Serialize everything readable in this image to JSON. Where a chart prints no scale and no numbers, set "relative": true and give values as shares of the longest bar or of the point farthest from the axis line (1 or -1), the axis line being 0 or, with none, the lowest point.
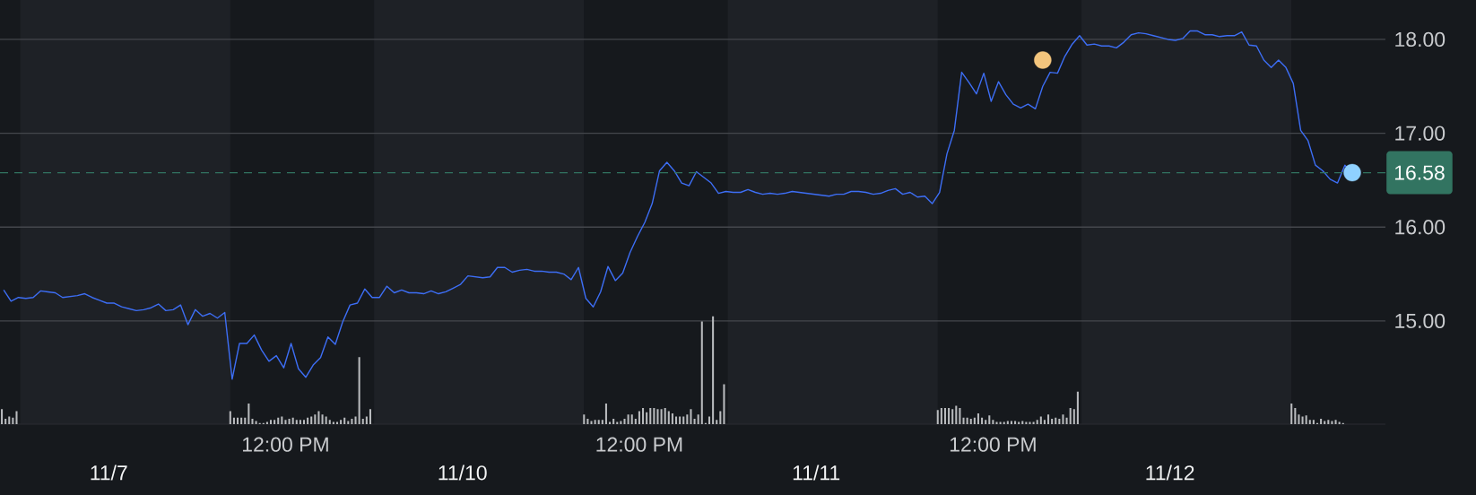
{
  "chart_data": [
    {
      "type": "line",
      "categories": [
        null,
        null,
        null,
        null,
        null,
        null,
        null,
        null,
        null,
        null,
        null,
        null,
        null,
        null,
        null,
        null,
        null,
        null,
        null,
        null,
        null,
        null,
        null,
        null,
        null,
        null,
        null,
        null,
        null,
        null,
        null,
        null,
        null,
        null,
        null,
        null,
        null,
        null,
        null,
        null,
        null,
        null,
        null,
        null,
        null,
        null,
        null,
        null,
        null,
        null,
        null,
        null,
        null,
        null,
        null,
        null,
        null,
        null,
        null,
        null,
        null,
        null,
        null,
        null,
        null,
        null,
        null,
        null,
        null,
        null,
        null,
        null,
        null,
        null,
        null,
        null,
        null,
        null,
        null,
        null,
        null,
        null,
        null,
        null,
        null,
        null,
        null,
        null,
        null,
        null,
        null,
        null,
        null,
        null,
        null,
        null,
        null,
        null,
        null,
        null,
        null,
        null,
        null,
        null,
        null,
        null,
        null,
        null,
        null,
        null,
        null,
        null,
        null,
        null,
        null,
        null,
        null,
        null,
        null,
        null,
        null,
        null,
        null,
        null,
        null,
        null,
        null,
        null,
        null,
        null,
        null,
        null,
        null,
        null,
        null,
        null,
        null,
        null,
        null,
        null,
        null,
        null,
        null,
        null,
        null,
        null,
        null,
        null,
        null,
        null,
        null,
        null,
        null,
        null,
        null,
        null,
        null,
        null,
        null,
        null,
        null,
        null,
        null,
        null,
        null,
        null,
        null,
        null,
        null,
        null,
        null,
        null,
        null,
        null,
        null,
        null,
        null,
        null,
        null,
        null,
        null,
        null,
        null,
        null,
        null,
        null,
        null,
        null
      ],
      "series": [
        {
          "color": "#3d6ef5",
          "values": [
            15.33,
            15.21,
            15.25,
            15.24,
            15.25,
            15.32,
            15.31,
            15.3,
            15.25,
            15.26,
            15.27,
            15.29,
            15.25,
            15.22,
            15.19,
            15.19,
            15.15,
            15.13,
            15.11,
            15.12,
            15.14,
            15.18,
            15.11,
            15.12,
            15.17,
            14.96,
            15.12,
            15.05,
            15.08,
            15.03,
            15.09,
            14.38,
            14.76,
            14.76,
            14.85,
            14.69,
            14.57,
            14.63,
            14.5,
            14.76,
            14.49,
            14.4,
            14.53,
            14.61,
            14.83,
            14.75,
            14.99,
            15.17,
            15.19,
            15.34,
            15.25,
            15.25,
            15.37,
            15.3,
            15.33,
            15.3,
            15.3,
            15.29,
            15.32,
            15.29,
            15.31,
            15.35,
            15.39,
            15.48,
            15.47,
            15.46,
            15.47,
            15.57,
            15.57,
            15.52,
            15.54,
            15.55,
            15.53,
            15.53,
            15.52,
            15.52,
            15.5,
            15.44,
            15.57,
            15.24,
            15.15,
            15.31,
            15.58,
            15.43,
            15.51,
            15.73,
            15.9,
            16.05,
            16.25,
            16.6,
            16.69,
            16.6,
            16.47,
            16.44,
            16.59,
            16.53,
            16.47,
            16.36,
            16.38,
            16.37,
            16.37,
            16.4,
            16.37,
            16.35,
            16.36,
            16.35,
            16.36,
            16.38,
            16.37,
            16.36,
            16.35,
            16.34,
            16.33,
            16.35,
            16.35,
            16.38,
            16.38,
            16.37,
            16.35,
            16.36,
            16.39,
            16.41,
            16.35,
            16.37,
            16.32,
            16.33,
            16.25,
            16.37,
            16.78,
            17.03,
            17.65,
            17.54,
            17.42,
            17.64,
            17.34,
            17.55,
            17.41,
            17.31,
            17.27,
            17.31,
            17.26,
            17.5,
            17.65,
            17.64,
            17.82,
            17.95,
            18.04,
            17.94,
            17.95,
            17.93,
            17.93,
            17.91,
            17.97,
            18.05,
            18.07,
            18.06,
            18.04,
            18.02,
            18.0,
            17.99,
            18.01,
            18.09,
            18.09,
            18.05,
            18.05,
            18.03,
            18.04,
            18.04,
            18.08,
            17.94,
            17.93,
            17.78,
            17.7,
            17.78,
            17.7,
            17.53,
            17.03,
            16.92,
            16.66,
            16.6,
            16.51,
            16.47,
            16.66,
            16.58,
            null,
            null,
            null,
            null
          ]
        },
        {
          "type": "scatter",
          "color": "#f3c57d",
          "values": [
            null,
            null,
            null,
            null,
            null,
            null,
            null,
            null,
            null,
            null,
            null,
            null,
            null,
            null,
            null,
            null,
            null,
            null,
            null,
            null,
            null,
            null,
            null,
            null,
            null,
            null,
            null,
            null,
            null,
            null,
            null,
            null,
            null,
            null,
            null,
            null,
            null,
            null,
            null,
            null,
            null,
            null,
            null,
            null,
            null,
            null,
            null,
            null,
            null,
            null,
            null,
            null,
            null,
            null,
            null,
            null,
            null,
            null,
            null,
            null,
            null,
            null,
            null,
            null,
            null,
            null,
            null,
            null,
            null,
            null,
            null,
            null,
            null,
            null,
            null,
            null,
            null,
            null,
            null,
            null,
            null,
            null,
            null,
            null,
            null,
            null,
            null,
            null,
            null,
            null,
            null,
            null,
            null,
            null,
            null,
            null,
            null,
            null,
            null,
            null,
            null,
            null,
            null,
            null,
            null,
            null,
            null,
            null,
            null,
            null,
            null,
            null,
            null,
            null,
            null,
            null,
            null,
            null,
            null,
            null,
            null,
            null,
            null,
            null,
            null,
            null,
            null,
            null,
            null,
            null,
            null,
            null,
            null,
            null,
            null,
            null,
            null,
            null,
            null,
            null,
            null,
            17.78,
            null,
            null,
            null,
            null,
            null,
            null,
            null,
            null,
            null,
            null,
            null,
            null,
            null,
            null,
            null,
            null,
            null,
            null,
            null,
            null,
            null,
            null,
            null,
            null,
            null,
            null,
            null,
            null,
            null,
            null,
            null,
            null,
            null,
            null,
            null,
            null,
            null,
            null,
            null,
            null,
            null,
            null,
            null,
            null,
            null,
            null
          ]
        },
        {
          "type": "scatter",
          "color": "#8fd1ff",
          "values": [
            null,
            null,
            null,
            null,
            null,
            null,
            null,
            null,
            null,
            null,
            null,
            null,
            null,
            null,
            null,
            null,
            null,
            null,
            null,
            null,
            null,
            null,
            null,
            null,
            null,
            null,
            null,
            null,
            null,
            null,
            null,
            null,
            null,
            null,
            null,
            null,
            null,
            null,
            null,
            null,
            null,
            null,
            null,
            null,
            null,
            null,
            null,
            null,
            null,
            null,
            null,
            null,
            null,
            null,
            null,
            null,
            null,
            null,
            null,
            null,
            null,
            null,
            null,
            null,
            null,
            null,
            null,
            null,
            null,
            null,
            null,
            null,
            null,
            null,
            null,
            null,
            null,
            null,
            null,
            null,
            null,
            null,
            null,
            null,
            null,
            null,
            null,
            null,
            null,
            null,
            null,
            null,
            null,
            null,
            null,
            null,
            null,
            null,
            null,
            null,
            null,
            null,
            null,
            null,
            null,
            null,
            null,
            null,
            null,
            null,
            null,
            null,
            null,
            null,
            null,
            null,
            null,
            null,
            null,
            null,
            null,
            null,
            null,
            null,
            null,
            null,
            null,
            null,
            null,
            null,
            null,
            null,
            null,
            null,
            null,
            null,
            null,
            null,
            null,
            null,
            null,
            null,
            null,
            null,
            null,
            null,
            null,
            null,
            null,
            null,
            null,
            null,
            null,
            null,
            null,
            null,
            null,
            null,
            null,
            null,
            null,
            null,
            null,
            null,
            null,
            null,
            null,
            null,
            null,
            null,
            null,
            null,
            null,
            null,
            null,
            null,
            null,
            null,
            null,
            null,
            null,
            null,
            null,
            16.58,
            null,
            null,
            null,
            null
          ]
        }
      ],
      "ylim": [
        13.9,
        18.42
      ],
      "yticks": [
        {
          "value": 15,
          "label": "15.00"
        },
        {
          "value": 16,
          "label": "16.00"
        },
        {
          "value": 17,
          "label": "17.00"
        },
        {
          "value": 18,
          "label": "18.00"
        }
      ],
      "grid": "y",
      "ref_lines": [
        {
          "axis": "y",
          "value": 16.58,
          "label": "16.58",
          "color": "#327461",
          "line_style": "dashed"
        }
      ]
    },
    {
      "type": "bar",
      "relative": true,
      "color": "#b9bbbe",
      "categories": [
        null,
        null,
        null,
        null,
        null,
        null,
        null,
        null,
        null,
        null,
        null,
        null,
        null,
        null,
        null,
        null,
        null,
        null,
        null,
        null,
        null,
        null,
        null,
        null,
        null,
        null,
        null,
        null,
        null,
        "11/7",
        null,
        null,
        null,
        null,
        null,
        null,
        null,
        null,
        null,
        null,
        null,
        null,
        null,
        null,
        null,
        null,
        null,
        null,
        null,
        null,
        null,
        null,
        null,
        null,
        null,
        null,
        null,
        null,
        null,
        null,
        null,
        null,
        null,
        null,
        null,
        null,
        null,
        null,
        null,
        null,
        null,
        null,
        null,
        null,
        null,
        null,
        null,
        "12:00 PM",
        null,
        null,
        null,
        null,
        null,
        null,
        null,
        null,
        null,
        null,
        null,
        null,
        null,
        null,
        null,
        null,
        null,
        null,
        null,
        null,
        null,
        null,
        null,
        null,
        null,
        null,
        null,
        null,
        null,
        null,
        null,
        null,
        null,
        null,
        null,
        null,
        null,
        null,
        null,
        null,
        null,
        null,
        null,
        null,
        null,
        null,
        null,
        "11/10",
        null,
        null,
        null,
        null,
        null,
        null,
        null,
        null,
        null,
        null,
        null,
        null,
        null,
        null,
        null,
        null,
        null,
        null,
        null,
        null,
        null,
        null,
        null,
        null,
        null,
        null,
        null,
        null,
        null,
        null,
        null,
        null,
        null,
        null,
        null,
        null,
        null,
        null,
        null,
        null,
        null,
        null,
        null,
        null,
        null,
        null,
        null,
        "12:00 PM",
        null,
        null,
        null,
        null,
        null,
        null,
        null,
        null,
        null,
        null,
        null,
        null,
        null,
        null,
        null,
        null,
        null,
        null,
        null,
        null,
        null,
        null,
        null,
        null,
        null,
        null,
        null,
        null,
        null,
        null,
        null,
        null,
        null,
        null,
        null,
        null,
        null,
        null,
        null,
        null,
        null,
        null,
        null,
        null,
        null,
        null,
        null,
        "11/11",
        null,
        null,
        null,
        null,
        null,
        null,
        null,
        null,
        null,
        null,
        null,
        null,
        null,
        null,
        null,
        null,
        null,
        null,
        null,
        null,
        null,
        null,
        null,
        null,
        null,
        null,
        null,
        null,
        null,
        null,
        null,
        null,
        null,
        null,
        null,
        null,
        null,
        null,
        null,
        null,
        null,
        null,
        null,
        null,
        null,
        null,
        null,
        "12:00 PM",
        null,
        null,
        null,
        null,
        null,
        null,
        null,
        null,
        null,
        null,
        null,
        null,
        null,
        null,
        null,
        null,
        null,
        null,
        null,
        null,
        null,
        null,
        null,
        null,
        null,
        null,
        null,
        null,
        null,
        null,
        null,
        null,
        null,
        null,
        null,
        null,
        null,
        null,
        null,
        null,
        null,
        null,
        null,
        null,
        null,
        null,
        null,
        "11/12",
        null,
        null,
        null,
        null,
        null,
        null,
        null,
        null,
        null,
        null,
        null,
        null,
        null,
        null,
        null,
        null,
        null,
        null,
        null,
        null,
        null,
        null,
        null,
        null,
        null,
        null,
        null,
        null,
        null,
        null,
        null,
        null,
        null,
        null,
        null,
        null,
        null,
        null,
        null,
        null,
        null,
        null,
        null,
        null,
        null,
        null,
        null,
        null,
        null,
        null,
        null,
        null,
        null,
        null,
        null,
        null,
        null,
        null
      ],
      "values": [
        0.14,
        0.05,
        0.07,
        0.06,
        0.12,
        null,
        null,
        null,
        null,
        null,
        null,
        null,
        null,
        null,
        null,
        null,
        null,
        null,
        null,
        null,
        null,
        null,
        null,
        null,
        null,
        null,
        null,
        null,
        null,
        null,
        null,
        null,
        null,
        null,
        null,
        null,
        null,
        null,
        null,
        null,
        null,
        null,
        null,
        null,
        null,
        null,
        null,
        null,
        null,
        null,
        null,
        null,
        null,
        null,
        null,
        null,
        null,
        null,
        null,
        null,
        null,
        null,
        0.12,
        0.06,
        0.06,
        0.06,
        0.06,
        0.19,
        0.05,
        0.03,
        0.01,
        0.01,
        0.02,
        0.04,
        0.04,
        0.06,
        0.07,
        0.04,
        0.05,
        0.06,
        0.04,
        0.04,
        0.04,
        0.06,
        0.07,
        0.09,
        0.12,
        0.09,
        0.07,
        0.04,
        0.02,
        0.02,
        0.04,
        0.06,
        0.03,
        0.05,
        0.07,
        0.62,
        0.05,
        0.07,
        0.14,
        null,
        null,
        null,
        null,
        null,
        null,
        null,
        null,
        null,
        null,
        null,
        null,
        null,
        null,
        null,
        null,
        null,
        null,
        null,
        null,
        null,
        null,
        null,
        null,
        null,
        null,
        null,
        null,
        null,
        null,
        null,
        null,
        null,
        null,
        null,
        null,
        null,
        null,
        null,
        null,
        null,
        null,
        null,
        null,
        null,
        null,
        null,
        null,
        null,
        null,
        null,
        null,
        null,
        null,
        null,
        null,
        null,
        0.09,
        0.05,
        0.03,
        0.04,
        0.04,
        0.04,
        0.19,
        0.02,
        0.05,
        0.02,
        0.03,
        0.05,
        0.09,
        0.09,
        0.05,
        0.12,
        0.15,
        0.11,
        0.15,
        0.15,
        0.14,
        0.14,
        0.15,
        0.12,
        0.1,
        0.07,
        0.07,
        0.07,
        0.09,
        0.14,
        0.05,
        0.09,
        0.95,
        0.01,
        0.07,
        1,
        0.04,
        0.12,
        0.37,
        null,
        null,
        null,
        null,
        null,
        null,
        null,
        null,
        null,
        null,
        null,
        null,
        null,
        null,
        null,
        null,
        null,
        null,
        null,
        null,
        null,
        null,
        null,
        null,
        null,
        null,
        null,
        null,
        null,
        null,
        null,
        null,
        null,
        null,
        null,
        null,
        null,
        null,
        null,
        null,
        null,
        null,
        null,
        null,
        null,
        null,
        null,
        null,
        null,
        null,
        null,
        null,
        null,
        null,
        null,
        null,
        null,
        0.13,
        0.15,
        0.15,
        0.15,
        0.14,
        0.17,
        0.15,
        0.06,
        0.06,
        0.05,
        0.06,
        0.1,
        0.06,
        0.04,
        0.08,
        0.04,
        0.02,
        0.02,
        0.02,
        0.03,
        0.03,
        0.03,
        0.02,
        0.03,
        0.02,
        0.02,
        0.02,
        0.04,
        0.07,
        0.04,
        0.09,
        0.05,
        0.06,
        0.05,
        0.09,
        0.06,
        0.15,
        0.14,
        0.3,
        null,
        null,
        null,
        null,
        null,
        null,
        null,
        null,
        null,
        null,
        null,
        null,
        null,
        null,
        null,
        null,
        null,
        null,
        null,
        null,
        null,
        null,
        null,
        null,
        null,
        null,
        null,
        null,
        null,
        null,
        null,
        null,
        null,
        null,
        null,
        null,
        null,
        null,
        null,
        null,
        null,
        null,
        null,
        null,
        null,
        null,
        null,
        null,
        null,
        null,
        null,
        null,
        null,
        null,
        null,
        null,
        null,
        0.19,
        0.15,
        0.09,
        0.07,
        0.08,
        0.04,
        0.04,
        0.01,
        0.05,
        0.03,
        0.04,
        0.03,
        0.04,
        0.02,
        0.01,
        null,
        null,
        null,
        null,
        null,
        null,
        null,
        null,
        null,
        null,
        null
      ]
    }
  ]
}
